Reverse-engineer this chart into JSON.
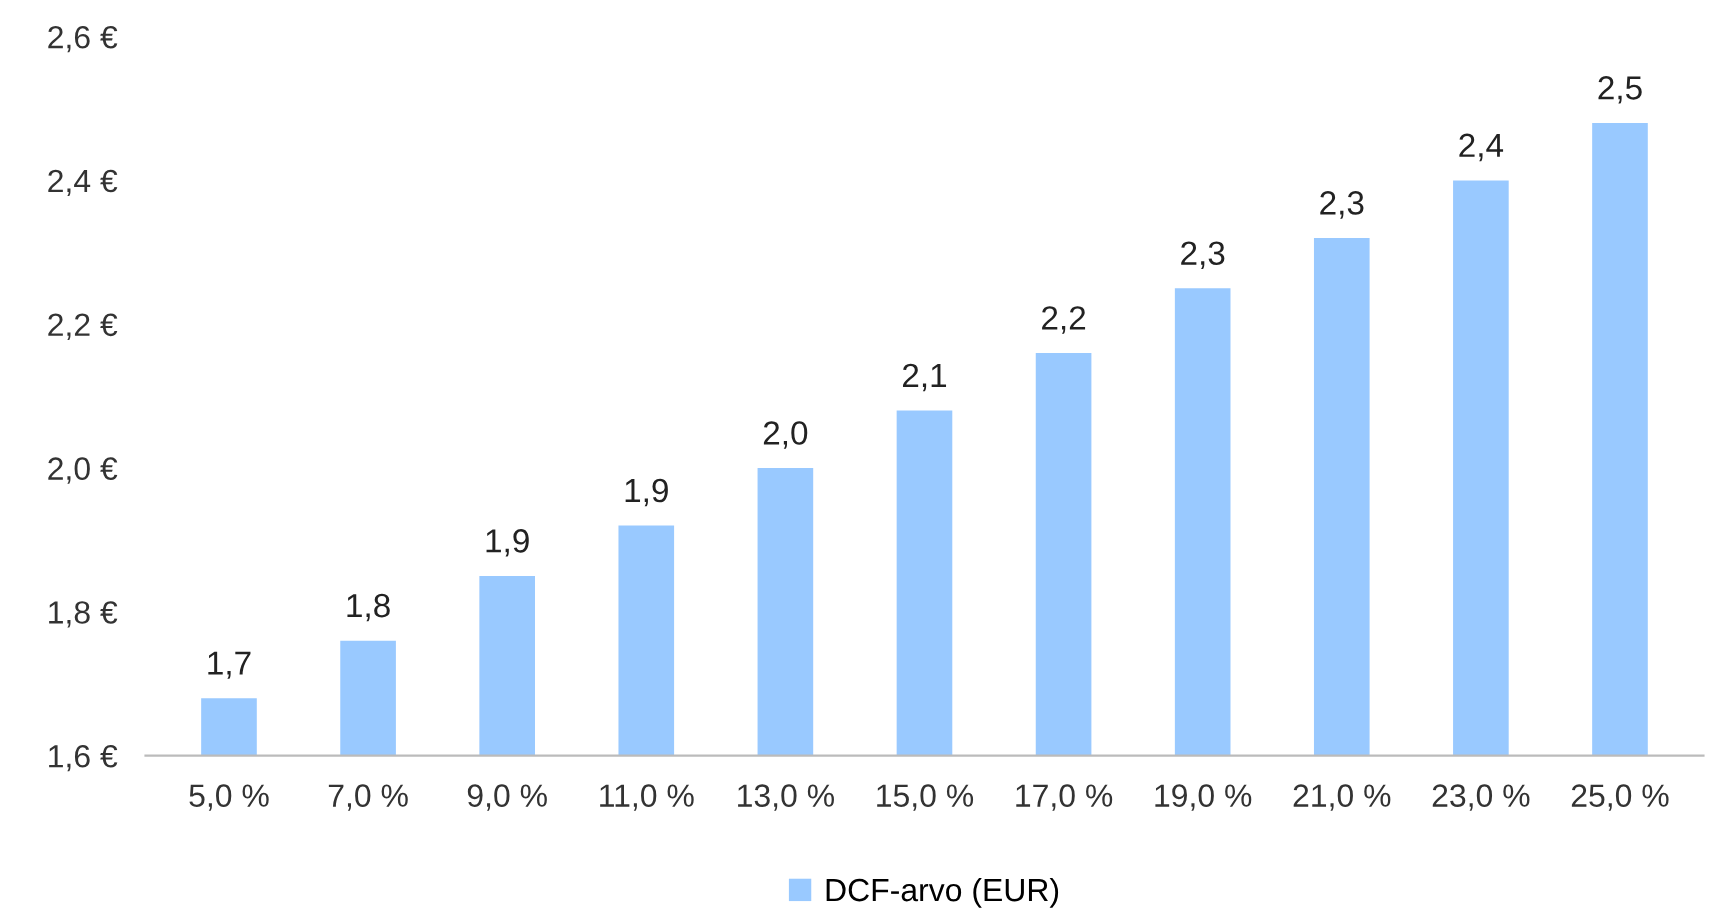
{
  "chart_data": {
    "type": "bar",
    "categories": [
      "5,0 %",
      "7,0 %",
      "9,0 %",
      "11,0 %",
      "13,0 %",
      "15,0 %",
      "17,0 %",
      "19,0 %",
      "21,0 %",
      "23,0 %",
      "25,0 %"
    ],
    "series": [
      {
        "name": "DCF-arvo (EUR)",
        "color": "#99c9ff",
        "values": [
          1.68,
          1.76,
          1.85,
          1.92,
          2.0,
          2.08,
          2.16,
          2.25,
          2.32,
          2.4,
          2.48
        ],
        "value_labels": [
          "1,7",
          "1,8",
          "1,9",
          "1,9",
          "2,0",
          "2,1",
          "2,2",
          "2,3",
          "2,3",
          "2,4",
          "2,5"
        ]
      }
    ],
    "ylim": [
      1.6,
      2.6
    ],
    "yticks": [
      {
        "value": 1.6,
        "label": "1,6 €"
      },
      {
        "value": 1.8,
        "label": "1,8 €"
      },
      {
        "value": 2.0,
        "label": "2,0 €"
      },
      {
        "value": 2.2,
        "label": "2,2 €"
      },
      {
        "value": 2.4,
        "label": "2,4 €"
      },
      {
        "value": 2.6,
        "label": "2,6 €"
      }
    ],
    "grid": false,
    "legend": "bottom"
  }
}
